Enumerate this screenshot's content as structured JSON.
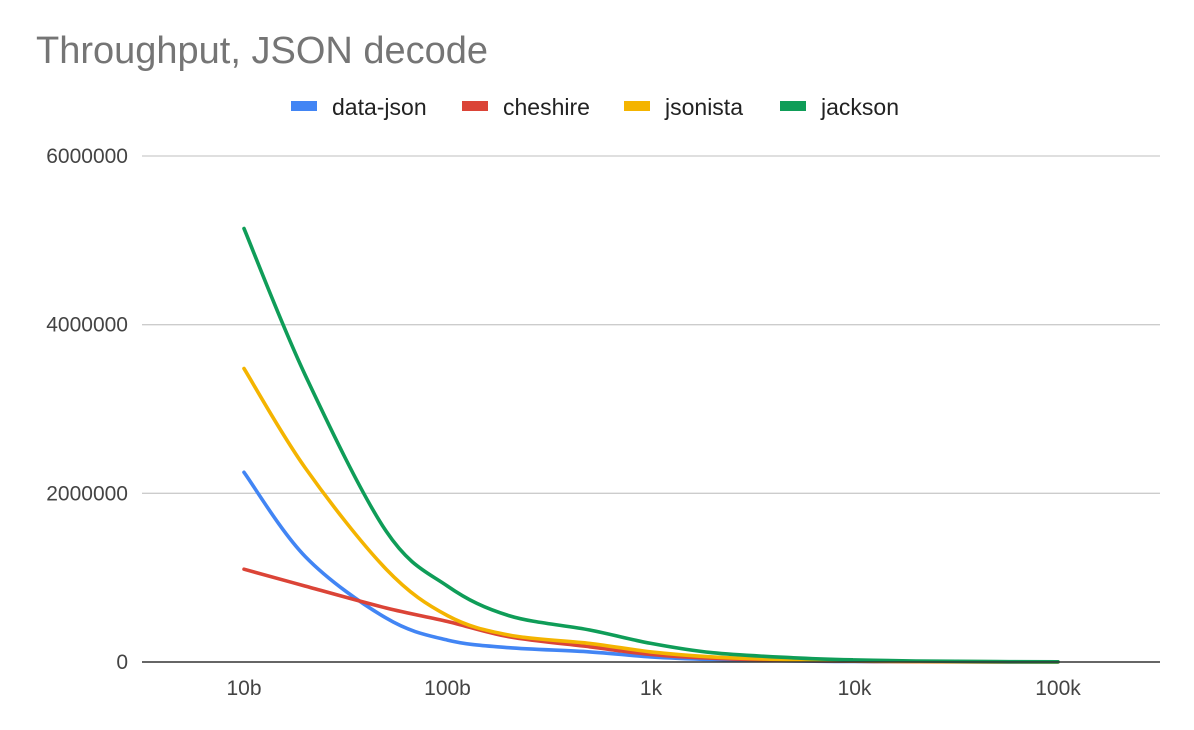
{
  "chart_data": {
    "type": "line",
    "title": "Throughput, JSON decode",
    "xlabel": "",
    "ylabel": "",
    "categories": [
      "10b",
      "100b",
      "1k",
      "10k",
      "100k"
    ],
    "x_scale": "log10",
    "x": [
      10,
      20,
      50,
      100,
      200,
      500,
      1000,
      2000,
      5000,
      10000,
      20000,
      50000,
      100000
    ],
    "ylim": [
      0,
      6000000
    ],
    "yticks": [
      0,
      2000000,
      4000000,
      6000000
    ],
    "ytick_labels": [
      "0",
      "2000000",
      "4000000",
      "6000000"
    ],
    "grid": true,
    "legend_position": "top-center",
    "series": [
      {
        "name": "data-json",
        "color": "#4285f4",
        "values": [
          2250000,
          1250000,
          520000,
          260000,
          170000,
          120000,
          60000,
          30000,
          12000,
          6000,
          3000,
          1000,
          500
        ]
      },
      {
        "name": "cheshire",
        "color": "#db4437",
        "values": [
          1100000,
          900000,
          640000,
          480000,
          300000,
          180000,
          90000,
          45000,
          18000,
          9000,
          4000,
          1500,
          800
        ]
      },
      {
        "name": "jsonista",
        "color": "#f4b400",
        "values": [
          3480000,
          2300000,
          1100000,
          550000,
          320000,
          220000,
          120000,
          60000,
          25000,
          12000,
          6000,
          2000,
          1000
        ]
      },
      {
        "name": "jackson",
        "color": "#0f9d58",
        "values": [
          5140000,
          3400000,
          1550000,
          900000,
          550000,
          380000,
          220000,
          110000,
          50000,
          25000,
          12000,
          5000,
          2500
        ]
      }
    ]
  }
}
